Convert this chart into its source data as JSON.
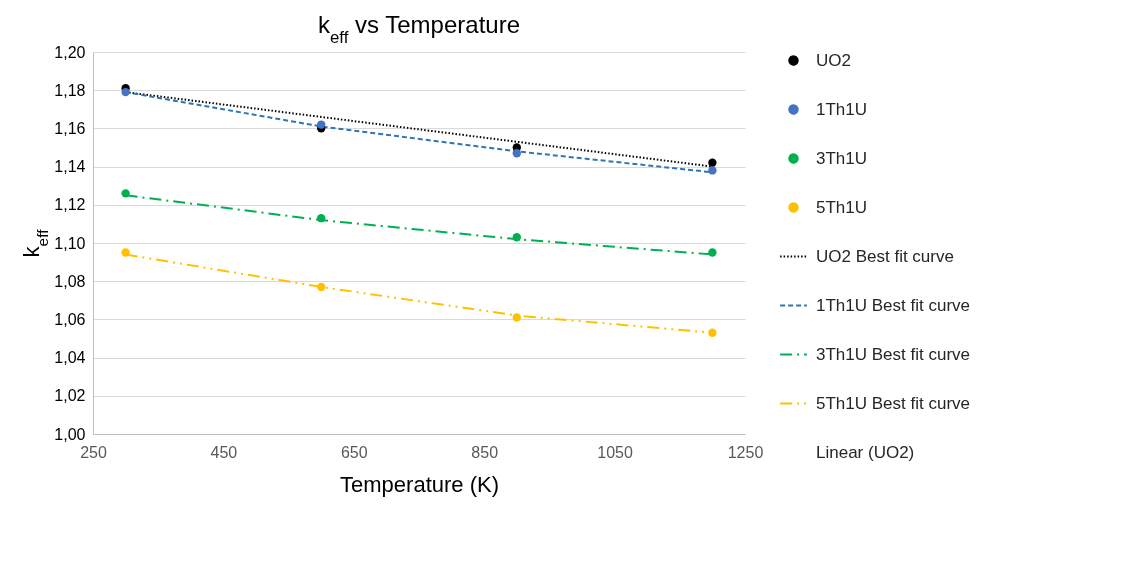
{
  "chart_data": {
    "type": "scatter",
    "title": "k$_{eff}$ vs Temperature",
    "xlabel": "Temperature (K)",
    "ylabel": "k$_{eff}$",
    "x": [
      300,
      600,
      900,
      1200
    ],
    "series": [
      {
        "name": "UO2",
        "marker": "circle",
        "color": "#000000",
        "values": [
          1.181,
          1.16,
          1.15,
          1.142
        ]
      },
      {
        "name": "1Th1U",
        "marker": "circle",
        "color": "#4472c4",
        "values": [
          1.179,
          1.162,
          1.147,
          1.138
        ]
      },
      {
        "name": "3Th1U",
        "marker": "circle",
        "color": "#00b050",
        "values": [
          1.126,
          1.113,
          1.103,
          1.095
        ]
      },
      {
        "name": "5Th1U",
        "marker": "circle",
        "color": "#ffc000",
        "values": [
          1.095,
          1.077,
          1.061,
          1.053
        ]
      },
      {
        "name": "UO2 Best fit curve",
        "type": "line",
        "marker": "none",
        "line_style": "dotted",
        "color": "#000000",
        "x": [
          300,
          1200
        ],
        "values": [
          1.179,
          1.14
        ]
      },
      {
        "name": "1Th1U Best fit curve",
        "type": "line",
        "marker": "none",
        "line_style": "dashed",
        "color": "#2e75b6",
        "values": [
          1.179,
          1.161,
          1.148,
          1.137
        ]
      },
      {
        "name": "3Th1U Best fit curve",
        "type": "line",
        "marker": "none",
        "line_style": "dashdot",
        "color": "#00b050",
        "values": [
          1.125,
          1.112,
          1.102,
          1.094
        ]
      },
      {
        "name": "5Th1U Best fit curve",
        "type": "line",
        "marker": "none",
        "line_style": "dashdotdot",
        "color": "#ffc000",
        "values": [
          1.094,
          1.077,
          1.062,
          1.053
        ]
      }
    ],
    "annotations": [
      "Linear (UO2)"
    ],
    "xlim": [
      250,
      1250
    ],
    "xticks": [
      250,
      450,
      650,
      850,
      1050,
      1250
    ],
    "ylim": [
      1.0,
      1.2
    ],
    "yticks": [
      {
        "value": 1.0,
        "label": "1,00"
      },
      {
        "value": 1.02,
        "label": "1,02"
      },
      {
        "value": 1.04,
        "label": "1,04"
      },
      {
        "value": 1.06,
        "label": "1,06"
      },
      {
        "value": 1.08,
        "label": "1,08"
      },
      {
        "value": 1.1,
        "label": "1,10"
      },
      {
        "value": 1.12,
        "label": "1,12"
      },
      {
        "value": 1.14,
        "label": "1,14"
      },
      {
        "value": 1.16,
        "label": "1,16"
      },
      {
        "value": 1.18,
        "label": "1,18"
      },
      {
        "value": 1.2,
        "label": "1,20"
      }
    ],
    "grid": "y",
    "legend": "right"
  }
}
